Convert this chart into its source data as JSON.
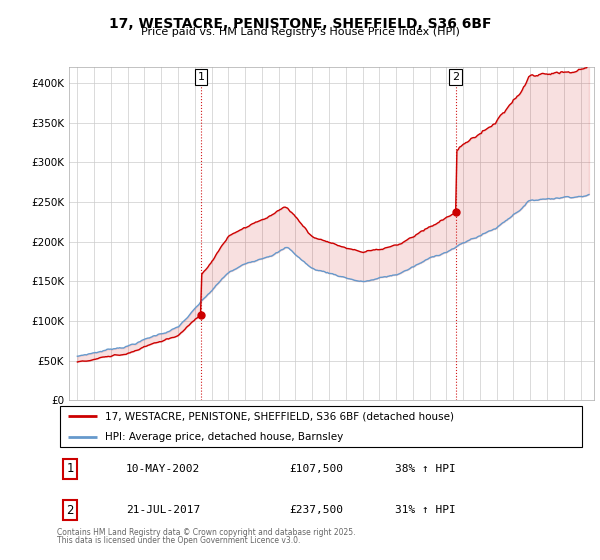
{
  "title": "17, WESTACRE, PENISTONE, SHEFFIELD, S36 6BF",
  "subtitle": "Price paid vs. HM Land Registry's House Price Index (HPI)",
  "legend_property": "17, WESTACRE, PENISTONE, SHEFFIELD, S36 6BF (detached house)",
  "legend_hpi": "HPI: Average price, detached house, Barnsley",
  "annotation1_label": "1",
  "annotation1_date": "10-MAY-2002",
  "annotation1_price": "£107,500",
  "annotation1_pct": "38% ↑ HPI",
  "annotation2_label": "2",
  "annotation2_date": "21-JUL-2017",
  "annotation2_price": "£237,500",
  "annotation2_pct": "31% ↑ HPI",
  "footer": "Contains HM Land Registry data © Crown copyright and database right 2025.\nThis data is licensed under the Open Government Licence v3.0.",
  "property_color": "#cc0000",
  "hpi_color": "#6699cc",
  "ylim": [
    0,
    420000
  ],
  "yticks": [
    0,
    50000,
    100000,
    150000,
    200000,
    250000,
    300000,
    350000,
    400000
  ],
  "ytick_labels": [
    "£0",
    "£50K",
    "£100K",
    "£150K",
    "£200K",
    "£250K",
    "£300K",
    "£350K",
    "£400K"
  ],
  "purchase1_x": 2002.36,
  "purchase1_y": 107500,
  "purchase2_x": 2017.55,
  "purchase2_y": 237500,
  "xmin": 1994.5,
  "xmax": 2025.8
}
